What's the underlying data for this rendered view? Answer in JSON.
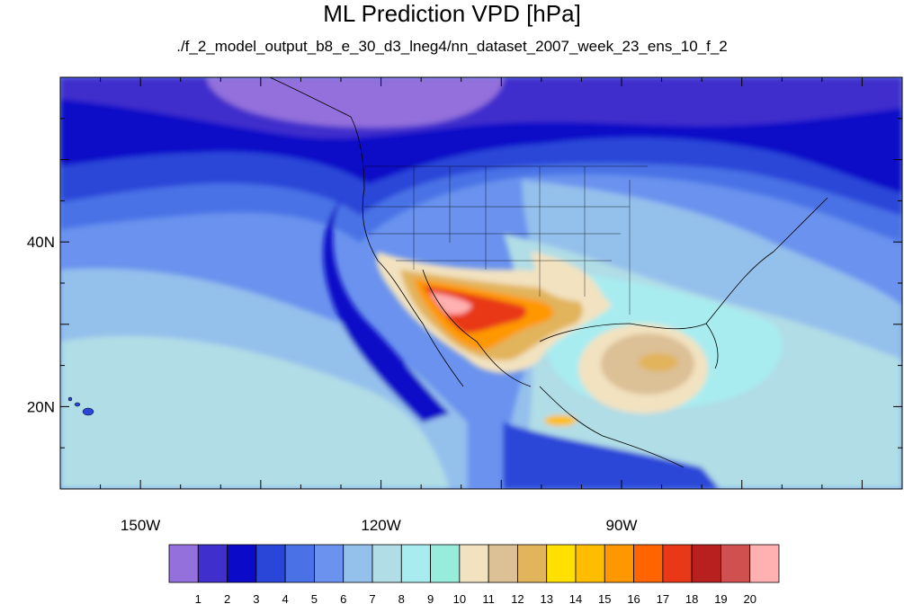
{
  "title": "ML Prediction VPD [hPa]",
  "subtitle": "./f_2_model_output_b8_e_30_d3_lneg4/nn_dataset_2007_week_23_ens_10_f_2",
  "map": {
    "lat_ticks": [
      {
        "label": "40N",
        "lat": 40
      },
      {
        "label": "20N",
        "lat": 20
      }
    ],
    "lon_ticks": [
      {
        "label": "150W",
        "lon": -150
      },
      {
        "label": "120W",
        "lon": -120
      },
      {
        "label": "90W",
        "lon": -90
      }
    ],
    "lon_range": [
      -160,
      -55
    ],
    "lat_range": [
      10,
      60
    ]
  },
  "colorbar": {
    "colors": [
      "#9370db",
      "#3f2fcc",
      "#0a0ac8",
      "#2a46d8",
      "#4a72e6",
      "#6a92ee",
      "#94c0ec",
      "#b0dde6",
      "#a8ecf0",
      "#98ecdc",
      "#f2e2c0",
      "#dcc096",
      "#e2b45c",
      "#ffe000",
      "#ffbd00",
      "#ff9800",
      "#ff6400",
      "#e83818",
      "#b82020",
      "#d05050",
      "#ffb0b0"
    ],
    "labels": [
      "1",
      "2",
      "3",
      "4",
      "5",
      "6",
      "7",
      "8",
      "9",
      "10",
      "11",
      "12",
      "13",
      "14",
      "15",
      "16",
      "17",
      "18",
      "19",
      "20"
    ]
  }
}
